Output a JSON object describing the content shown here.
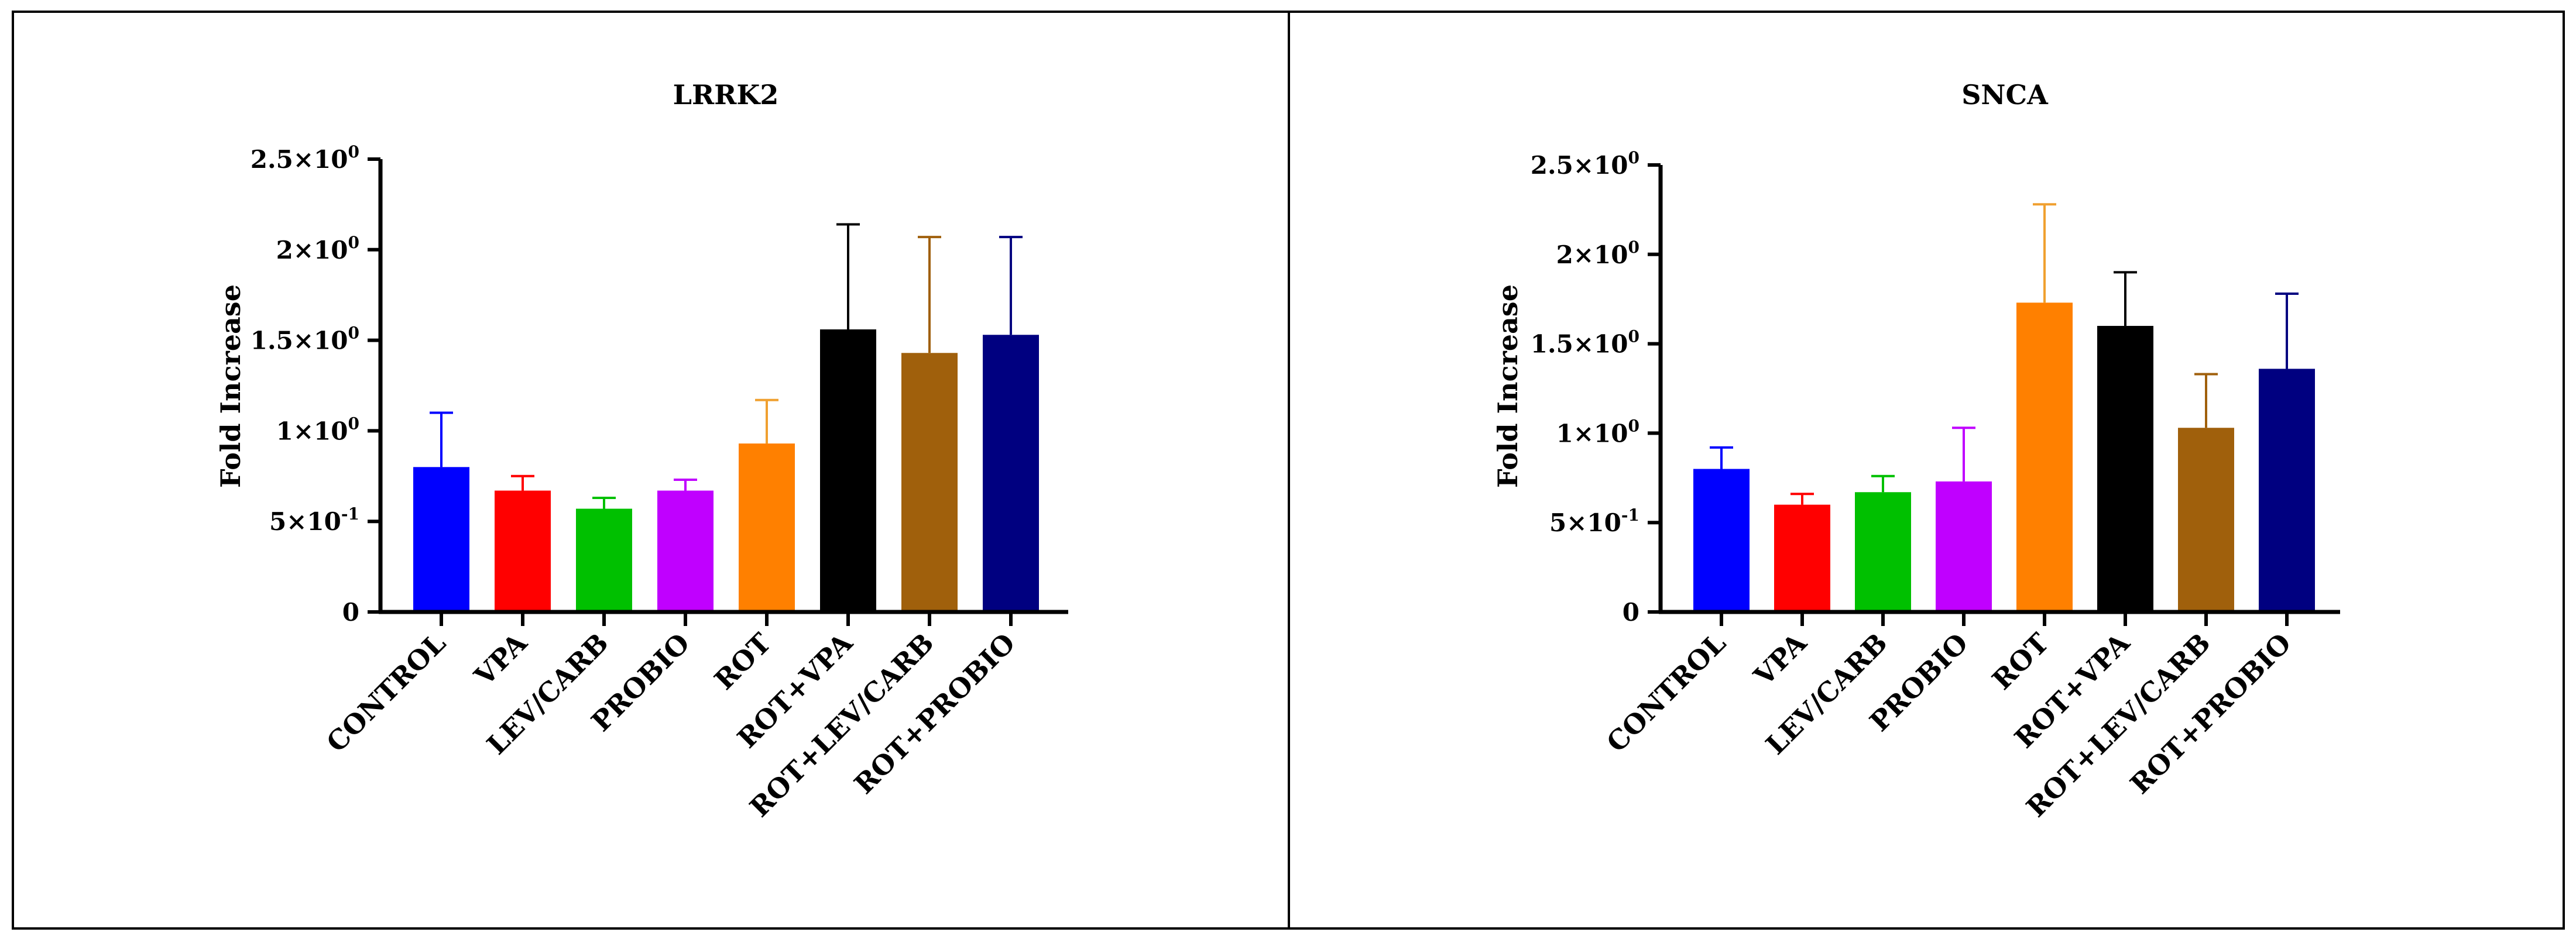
{
  "chart_data": [
    {
      "type": "bar",
      "title": "LRRK2",
      "xlabel": "",
      "ylabel": "Fold Increase",
      "ylim": [
        0,
        2.5
      ],
      "yticks": [
        {
          "value": 0,
          "base": "0",
          "exp": ""
        },
        {
          "value": 0.5,
          "base": "5×10",
          "exp": "-1"
        },
        {
          "value": 1.0,
          "base": "1×10",
          "exp": "0"
        },
        {
          "value": 1.5,
          "base": "1.5×10",
          "exp": "0"
        },
        {
          "value": 2.0,
          "base": "2×10",
          "exp": "0"
        },
        {
          "value": 2.5,
          "base": "2.5×10",
          "exp": "0"
        }
      ],
      "categories": [
        "CONTROL",
        "VPA",
        "LEV/CARB",
        "PROBIO",
        "ROT",
        "ROT+VPA",
        "ROT+LEV/CARB",
        "ROT+PROBIO"
      ],
      "values": [
        0.8,
        0.67,
        0.57,
        0.67,
        0.93,
        1.56,
        1.43,
        1.53
      ],
      "errors": [
        0.3,
        0.08,
        0.06,
        0.06,
        0.24,
        0.58,
        0.64,
        0.54
      ],
      "colors": [
        "#0000ff",
        "#ff0000",
        "#00c000",
        "#c000ff",
        "#ff8000",
        "#000000",
        "#a0600c",
        "#000080"
      ],
      "error_colors": [
        "#0000ff",
        "#ff0000",
        "#00c000",
        "#c000ff",
        "#f0a030",
        "#000000",
        "#a0600c",
        "#000080"
      ]
    },
    {
      "type": "bar",
      "title": "SNCA",
      "xlabel": "",
      "ylabel": "Fold Increase",
      "ylim": [
        0,
        2.5
      ],
      "yticks": [
        {
          "value": 0,
          "base": "0",
          "exp": ""
        },
        {
          "value": 0.5,
          "base": "5×10",
          "exp": "-1"
        },
        {
          "value": 1.0,
          "base": "1×10",
          "exp": "0"
        },
        {
          "value": 1.5,
          "base": "1.5×10",
          "exp": "0"
        },
        {
          "value": 2.0,
          "base": "2×10",
          "exp": "0"
        },
        {
          "value": 2.5,
          "base": "2.5×10",
          "exp": "0"
        }
      ],
      "categories": [
        "CONTROL",
        "VPA",
        "LEV/CARB",
        "PROBIO",
        "ROT",
        "ROT+VPA",
        "ROT+LEV/CARB",
        "ROT+PROBIO"
      ],
      "values": [
        0.8,
        0.6,
        0.67,
        0.73,
        1.73,
        1.6,
        1.03,
        1.36
      ],
      "errors": [
        0.12,
        0.06,
        0.09,
        0.3,
        0.55,
        0.3,
        0.3,
        0.42
      ],
      "colors": [
        "#0000ff",
        "#ff0000",
        "#00c000",
        "#c000ff",
        "#ff8000",
        "#000000",
        "#a0600c",
        "#000080"
      ],
      "error_colors": [
        "#0000ff",
        "#ff0000",
        "#00c000",
        "#c000ff",
        "#f0a030",
        "#000000",
        "#a0600c",
        "#000080"
      ]
    }
  ]
}
